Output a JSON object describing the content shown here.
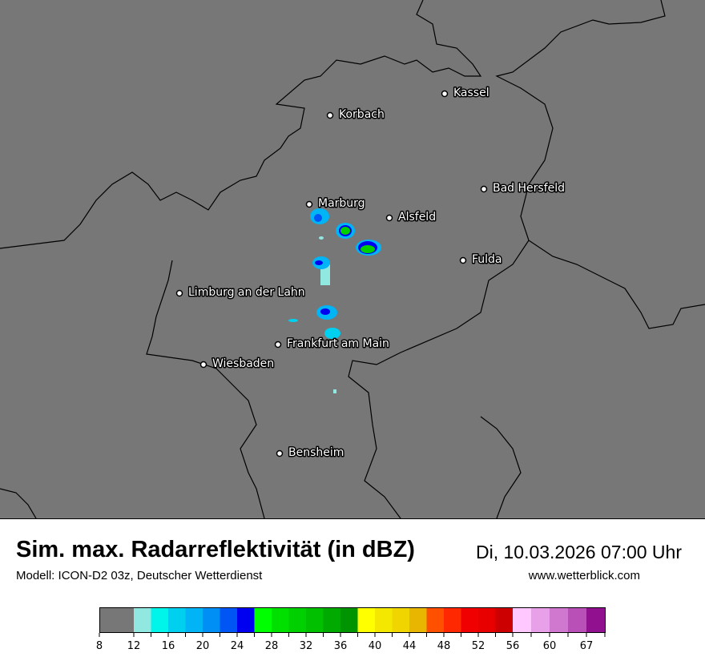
{
  "map": {
    "cities": [
      {
        "name": "Kassel"
      },
      {
        "name": "Korbach"
      },
      {
        "name": "Bad Hersfeld"
      },
      {
        "name": "Marburg"
      },
      {
        "name": "Alsfeld"
      },
      {
        "name": "Fulda"
      },
      {
        "name": "Limburg an der Lahn"
      },
      {
        "name": "Frankfurt am Main"
      },
      {
        "name": "Wiesbaden"
      },
      {
        "name": "Bensheim"
      }
    ],
    "background_color": "#777777"
  },
  "footer": {
    "title": "Sim. max. Radarreflektivität (in dBZ)",
    "model": "Modell: ICON-D2 03z, Deutscher Wetterdienst",
    "datetime": "Di, 10.03.2026 07:00 Uhr",
    "website": "www.wetterblick.com"
  },
  "colorbar": {
    "tick_labels": [
      "8",
      "12",
      "16",
      "20",
      "24",
      "28",
      "32",
      "36",
      "40",
      "44",
      "48",
      "52",
      "56",
      "60",
      "67"
    ],
    "colors": [
      "#777777",
      "#90e8e0",
      "#00f5ea",
      "#00d0f0",
      "#00b4f5",
      "#0090f5",
      "#0055f5",
      "#0000f0",
      "#00ff00",
      "#00e000",
      "#00d000",
      "#00c000",
      "#00aa00",
      "#009500",
      "#ffff00",
      "#f5e800",
      "#f0d500",
      "#e8b500",
      "#ff5000",
      "#ff2800",
      "#f00000",
      "#e80000",
      "#cc0000",
      "#ffc8ff",
      "#e8a0e8",
      "#d078d0",
      "#b850b8",
      "#901090"
    ]
  }
}
